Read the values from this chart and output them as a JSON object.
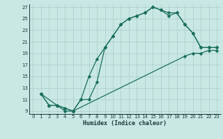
{
  "xlabel": "Humidex (Indice chaleur)",
  "xlim": [
    -0.5,
    23.5
  ],
  "ylim": [
    8.5,
    27.5
  ],
  "xticks": [
    0,
    1,
    2,
    3,
    4,
    5,
    6,
    7,
    8,
    9,
    10,
    11,
    12,
    13,
    14,
    15,
    16,
    17,
    18,
    19,
    20,
    21,
    22,
    23
  ],
  "yticks": [
    9,
    11,
    13,
    15,
    17,
    19,
    21,
    23,
    25,
    27
  ],
  "bg_color": "#c9e8e4",
  "line_color": "#1a6e5e",
  "grid_color": "#a8ccc8",
  "line1_x": [
    1,
    2,
    3,
    4,
    5,
    6,
    7,
    8,
    9,
    10,
    11,
    12,
    13,
    14,
    15,
    16,
    17,
    18,
    19,
    20,
    21,
    22,
    23
  ],
  "line1_y": [
    12,
    10,
    10,
    9,
    9,
    11,
    15,
    18,
    20,
    22,
    24,
    25,
    25.5,
    26,
    27,
    26.5,
    26,
    26,
    24,
    22.5,
    20,
    20,
    20
  ],
  "line2_x": [
    1,
    3,
    4,
    5,
    6,
    7,
    8,
    9,
    10,
    11,
    12,
    13,
    14,
    15,
    16,
    17,
    18,
    19,
    20,
    21,
    22,
    23
  ],
  "line2_y": [
    12,
    10,
    9.5,
    9,
    11,
    11,
    14,
    20,
    22,
    24,
    25,
    25.5,
    26,
    27,
    26.5,
    25.5,
    26,
    24,
    22.5,
    20,
    20,
    20
  ],
  "line3_x": [
    1,
    2,
    3,
    4,
    5,
    19,
    20,
    21,
    22,
    23
  ],
  "line3_y": [
    12,
    10,
    10,
    9.5,
    9,
    18.5,
    19,
    19,
    19.5,
    19.5
  ]
}
